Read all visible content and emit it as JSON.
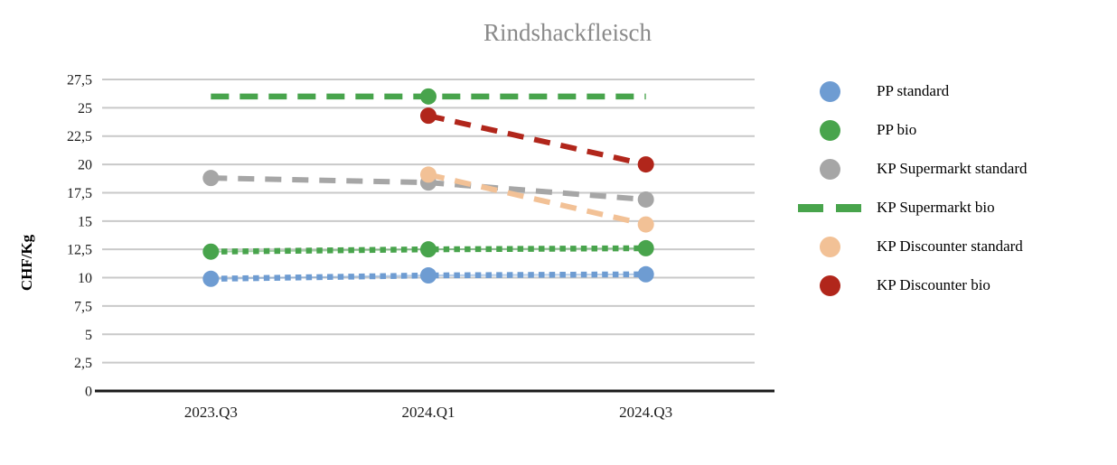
{
  "chart_data": {
    "type": "line",
    "title": "Rindshackfleisch",
    "ylabel": "CHF/Kg",
    "xlabel": "",
    "categories": [
      "2023.Q3",
      "2024.Q1",
      "2024.Q3"
    ],
    "ylim": [
      0,
      27.5
    ],
    "grid": true,
    "legend_position": "right",
    "decimal_separator": ",",
    "y_ticks": {
      "values": [
        0,
        2.5,
        5,
        7.5,
        10,
        12.5,
        15,
        17.5,
        20,
        22.5,
        25,
        27.5
      ],
      "labels": [
        "0",
        "2,5",
        "5",
        "7,5",
        "10",
        "12,5",
        "15",
        "17,5",
        "20",
        "22,5",
        "25",
        "27,5"
      ]
    },
    "series": [
      {
        "name": "PP standard",
        "color": "#6e9cd2",
        "line_style": "dotted",
        "marker": "circle",
        "legend_swatch": "circle",
        "values": [
          9.9,
          10.2,
          10.3
        ]
      },
      {
        "name": "PP bio",
        "color": "#48a44c",
        "line_style": "dotted",
        "marker": "circle",
        "legend_swatch": "circle",
        "values": [
          12.3,
          12.5,
          12.6
        ]
      },
      {
        "name": "KP Supermarkt standard",
        "color": "#a6a6a6",
        "line_style": "dashed",
        "marker": "circle",
        "legend_swatch": "circle",
        "values": [
          18.8,
          18.4,
          16.9
        ]
      },
      {
        "name": "KP Supermarkt bio",
        "color": "#48a44c",
        "line_style": "dashed-thick",
        "marker": "circle",
        "legend_swatch": "dashes",
        "marker_points": [
          1
        ],
        "values": [
          26,
          26,
          26
        ]
      },
      {
        "name": "KP Discounter standard",
        "color": "#f2c196",
        "line_style": "dashed",
        "marker": "circle",
        "legend_swatch": "circle",
        "values": [
          null,
          19.1,
          14.7
        ]
      },
      {
        "name": "KP Discounter bio",
        "color": "#b1261b",
        "line_style": "dashed",
        "marker": "circle",
        "legend_swatch": "circle",
        "values": [
          null,
          24.3,
          20
        ]
      }
    ],
    "colors": {
      "grid": "#c9c9c9",
      "axis": "#1a1a1a",
      "tick_text": "#1b1b1b",
      "title_text": "#8a8a8a"
    }
  }
}
